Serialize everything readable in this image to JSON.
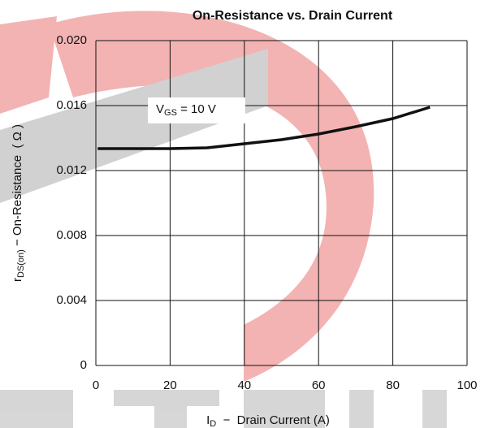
{
  "chart_data": {
    "type": "line",
    "title": "On-Resistance vs. Drain Current",
    "x_label": {
      "main": "I",
      "sub": "D",
      "rest": "  −  Drain Current (A)"
    },
    "y_label": {
      "main": "r",
      "sub": "DS(on)",
      "rest": " − On-Resistance  ( Ω )"
    },
    "annotation": {
      "main": "V",
      "sub": "GS",
      "rest": " = 10 V"
    },
    "x": [
      0.5,
      10,
      20,
      30,
      40,
      50,
      60,
      70,
      80,
      90
    ],
    "series": [
      {
        "name": "VGS = 10 V",
        "color": "#111111",
        "values": [
          0.01335,
          0.01335,
          0.01335,
          0.0134,
          0.01365,
          0.0139,
          0.01425,
          0.0147,
          0.0152,
          0.0159
        ]
      }
    ],
    "xlim": [
      0,
      100
    ],
    "xticks": [
      0,
      20,
      40,
      60,
      80,
      100
    ],
    "ylim": [
      0,
      0.02
    ],
    "yticks": [
      0,
      0.004,
      0.008,
      0.012,
      0.016,
      {
        "value": 0.02,
        "label": "0.020"
      }
    ],
    "grid": true
  }
}
